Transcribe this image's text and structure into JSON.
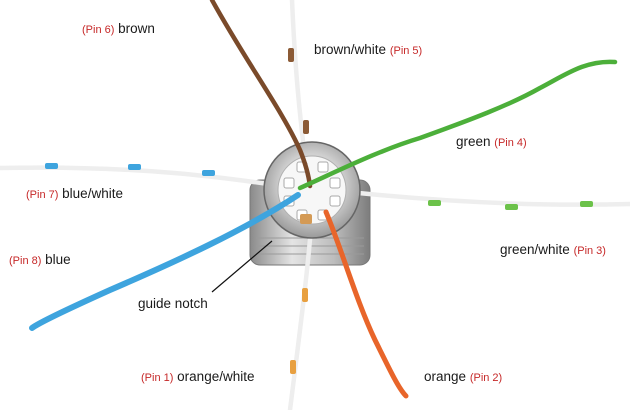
{
  "labels": {
    "pin6": {
      "pin": "(Pin 6)",
      "name": "brown"
    },
    "pin5": {
      "name": "brown/white",
      "pin": "(Pin 5)"
    },
    "pin4": {
      "name": "green",
      "pin": "(Pin 4)"
    },
    "pin7": {
      "pin": "(Pin 7)",
      "name": "blue/white"
    },
    "pin8": {
      "pin": "(Pin 8)",
      "name": "blue"
    },
    "pin3": {
      "name": "green/white",
      "pin": "(Pin 3)"
    },
    "notch": {
      "name": "guide notch"
    },
    "pin1": {
      "pin": "(Pin 1)",
      "name": "orange/white"
    },
    "pin2": {
      "name": "orange",
      "pin": "(Pin 2)"
    }
  },
  "colors": {
    "brown": "#7a4a2a",
    "green": "#4caf3a",
    "blue": "#3ea4de",
    "orange": "#e8652a",
    "white_wire": "#f2f2f2",
    "pin_label": "#c62828",
    "connector_body": "#c9c9c9"
  }
}
